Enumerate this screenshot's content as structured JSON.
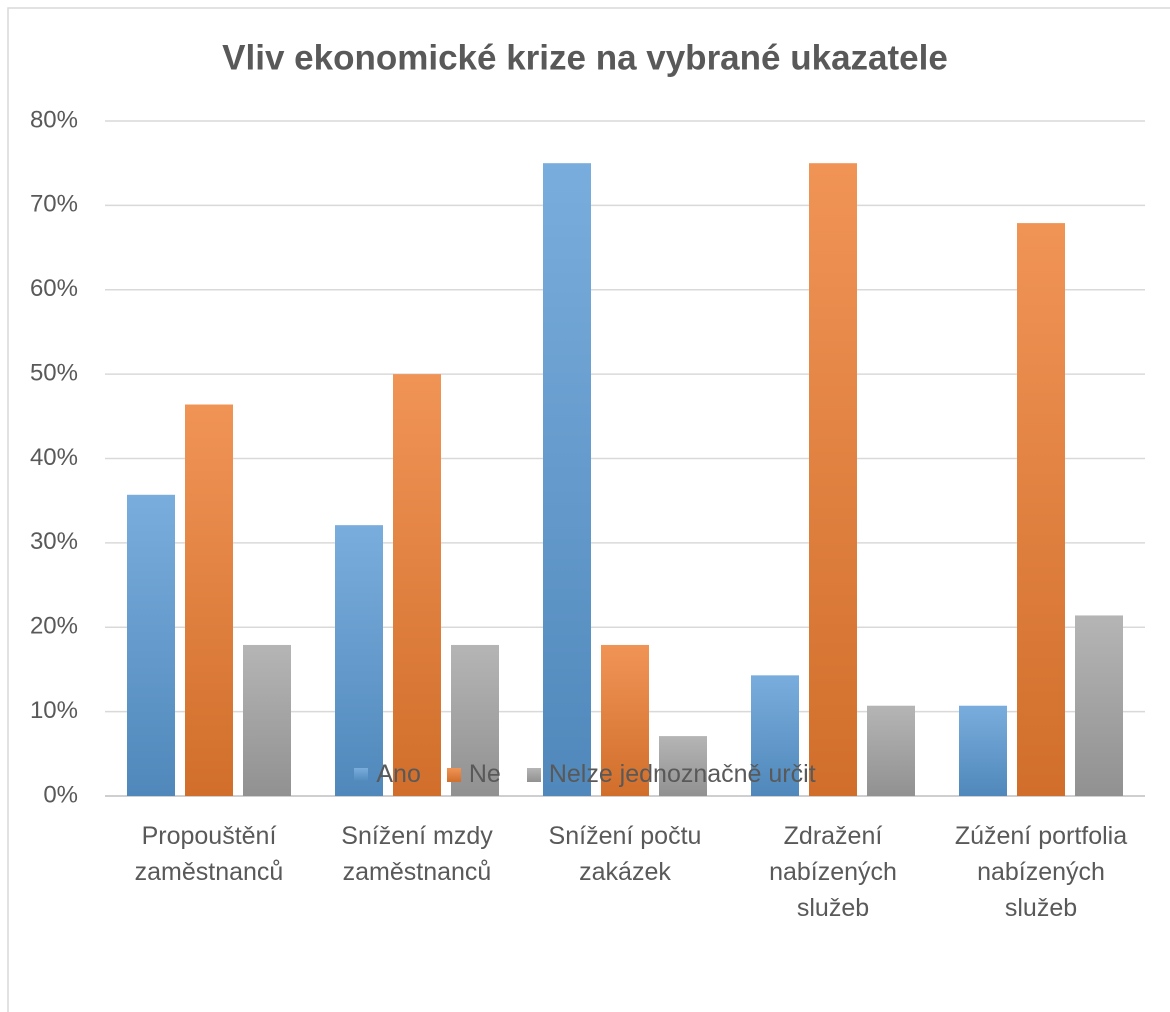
{
  "chart_data": {
    "type": "bar",
    "title": "Vliv ekonomické krize na vybrané ukazatele",
    "categories": [
      "Propouštění\nzaměstnanců",
      "Snížení mzdy\nzaměstnanců",
      "Snížení počtu\nzakázek",
      "Zdražení\nnabízených\nslužeb",
      "Zúžení portfolia\nnabízených\nslužeb"
    ],
    "series": [
      {
        "name": "Ano",
        "color": "#5b9bd5",
        "values": [
          35.7,
          32.1,
          75,
          14.3,
          10.7
        ]
      },
      {
        "name": "Ne",
        "color": "#ed7d31",
        "values": [
          46.4,
          50,
          17.9,
          75,
          67.9
        ]
      },
      {
        "name": "Nelze jednoznačně určit",
        "color": "#a5a5a5",
        "values": [
          17.9,
          17.9,
          7.1,
          10.7,
          21.4
        ]
      }
    ],
    "ylim": [
      0,
      80
    ],
    "yticks": [
      {
        "value": 0,
        "label": "0%"
      },
      {
        "value": 10,
        "label": "10%"
      },
      {
        "value": 20,
        "label": "20%"
      },
      {
        "value": 30,
        "label": "30%"
      },
      {
        "value": 40,
        "label": "40%"
      },
      {
        "value": 50,
        "label": "50%"
      },
      {
        "value": 60,
        "label": "60%"
      },
      {
        "value": 70,
        "label": "70%"
      },
      {
        "value": 80,
        "label": "80%"
      }
    ],
    "grid": true,
    "legend": "bottom"
  }
}
